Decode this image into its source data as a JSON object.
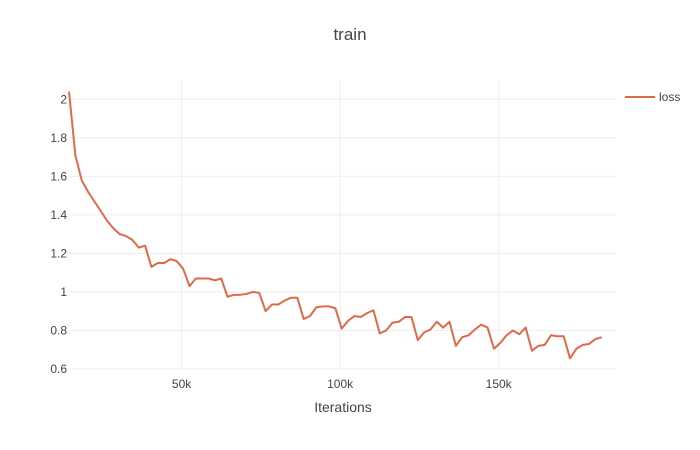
{
  "chart_data": {
    "type": "line",
    "title": "train",
    "xlabel": "Iterations",
    "ylabel": "",
    "xlim": [
      14500,
      187000
    ],
    "ylim": [
      0.6,
      2.1
    ],
    "x_ticks": [
      50000,
      100000,
      150000
    ],
    "x_tick_labels": [
      "50k",
      "100k",
      "150k"
    ],
    "y_ticks": [
      0.6,
      0.8,
      1,
      1.2,
      1.4,
      1.6,
      1.8,
      2
    ],
    "y_tick_labels": [
      "0.6",
      "0.8",
      "1",
      "1.2",
      "1.4",
      "1.6",
      "1.8",
      "2"
    ],
    "grid": true,
    "legend_position": "top-right",
    "series": [
      {
        "name": "loss",
        "color": "#e1694a",
        "points": [
          [
            14500,
            2.04
          ],
          [
            16500,
            1.71
          ],
          [
            18500,
            1.58
          ],
          [
            20500,
            1.52
          ],
          [
            22500,
            1.47
          ],
          [
            24500,
            1.42
          ],
          [
            26500,
            1.37
          ],
          [
            28500,
            1.33
          ],
          [
            30500,
            1.3
          ],
          [
            32500,
            1.29
          ],
          [
            34500,
            1.27
          ],
          [
            36500,
            1.23
          ],
          [
            38500,
            1.24
          ],
          [
            40500,
            1.13
          ],
          [
            42500,
            1.15
          ],
          [
            44500,
            1.15
          ],
          [
            46500,
            1.17
          ],
          [
            48500,
            1.16
          ],
          [
            50500,
            1.12
          ],
          [
            52500,
            1.03
          ],
          [
            54500,
            1.07
          ],
          [
            56500,
            1.07
          ],
          [
            58500,
            1.07
          ],
          [
            60500,
            1.06
          ],
          [
            62500,
            1.07
          ],
          [
            64500,
            0.975
          ],
          [
            66500,
            0.985
          ],
          [
            68500,
            0.985
          ],
          [
            70500,
            0.99
          ],
          [
            72500,
            1.0
          ],
          [
            74500,
            0.995
          ],
          [
            76500,
            0.9
          ],
          [
            78500,
            0.935
          ],
          [
            80500,
            0.935
          ],
          [
            82500,
            0.955
          ],
          [
            84500,
            0.97
          ],
          [
            86500,
            0.97
          ],
          [
            88500,
            0.86
          ],
          [
            90500,
            0.875
          ],
          [
            92500,
            0.92
          ],
          [
            94500,
            0.925
          ],
          [
            96500,
            0.925
          ],
          [
            98500,
            0.915
          ],
          [
            100500,
            0.81
          ],
          [
            102500,
            0.85
          ],
          [
            104500,
            0.875
          ],
          [
            106500,
            0.87
          ],
          [
            108500,
            0.89
          ],
          [
            110500,
            0.905
          ],
          [
            112500,
            0.785
          ],
          [
            114500,
            0.8
          ],
          [
            116500,
            0.84
          ],
          [
            118500,
            0.845
          ],
          [
            120500,
            0.87
          ],
          [
            122500,
            0.87
          ],
          [
            124500,
            0.75
          ],
          [
            126500,
            0.79
          ],
          [
            128500,
            0.805
          ],
          [
            130500,
            0.845
          ],
          [
            132500,
            0.815
          ],
          [
            134500,
            0.845
          ],
          [
            136500,
            0.72
          ],
          [
            138500,
            0.765
          ],
          [
            140500,
            0.775
          ],
          [
            142500,
            0.805
          ],
          [
            144500,
            0.83
          ],
          [
            146500,
            0.815
          ],
          [
            148500,
            0.705
          ],
          [
            150500,
            0.735
          ],
          [
            152500,
            0.775
          ],
          [
            154500,
            0.8
          ],
          [
            156500,
            0.78
          ],
          [
            158500,
            0.815
          ],
          [
            160500,
            0.695
          ],
          [
            162500,
            0.72
          ],
          [
            164500,
            0.725
          ],
          [
            166500,
            0.775
          ],
          [
            168500,
            0.77
          ],
          [
            170500,
            0.77
          ],
          [
            172500,
            0.655
          ],
          [
            174500,
            0.705
          ],
          [
            176500,
            0.725
          ],
          [
            178500,
            0.73
          ],
          [
            180500,
            0.755
          ],
          [
            182500,
            0.765
          ]
        ]
      }
    ]
  }
}
